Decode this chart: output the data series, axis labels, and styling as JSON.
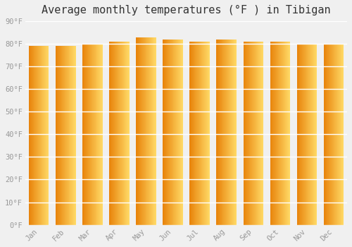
{
  "title": "Average monthly temperatures (°F ) in Tibigan",
  "months": [
    "Jan",
    "Feb",
    "Mar",
    "Apr",
    "May",
    "Jun",
    "Jul",
    "Aug",
    "Sep",
    "Oct",
    "Nov",
    "Dec"
  ],
  "values": [
    79,
    79,
    80,
    81,
    83,
    82,
    81,
    82,
    81,
    81,
    80,
    80
  ],
  "ylim": [
    0,
    90
  ],
  "yticks": [
    0,
    10,
    20,
    30,
    40,
    50,
    60,
    70,
    80,
    90
  ],
  "bar_color_left": "#E8830A",
  "bar_color_right": "#FFD966",
  "background_color": "#F0F0F0",
  "grid_color": "#FFFFFF",
  "tick_label_color": "#999999",
  "title_color": "#333333",
  "title_fontsize": 11,
  "bar_width": 0.75
}
